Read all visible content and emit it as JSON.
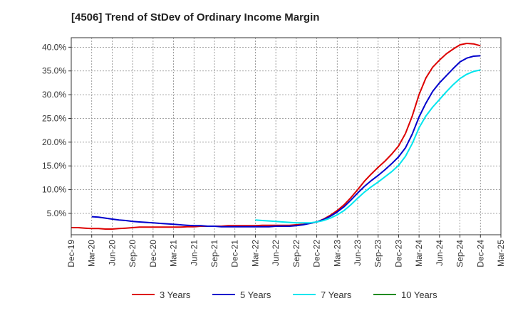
{
  "chart_data": {
    "type": "line",
    "title": "[4506]  Trend of StDev of Ordinary Income Margin",
    "xlabel": "",
    "ylabel": "",
    "x_ticks": [
      "Dec-19",
      "Mar-20",
      "Jun-20",
      "Sep-20",
      "Dec-20",
      "Mar-21",
      "Jun-21",
      "Sep-21",
      "Dec-21",
      "Mar-22",
      "Jun-22",
      "Sep-22",
      "Dec-22",
      "Mar-23",
      "Jun-23",
      "Sep-23",
      "Dec-23",
      "Mar-24",
      "Jun-24",
      "Sep-24",
      "Dec-24",
      "Mar-25"
    ],
    "y_ticks": [
      "5.0%",
      "10.0%",
      "15.0%",
      "20.0%",
      "25.0%",
      "30.0%",
      "35.0%",
      "40.0%"
    ],
    "ylim": [
      0.5,
      42.0
    ],
    "grid": true,
    "legend_position": "bottom",
    "series": [
      {
        "name": "3 Years",
        "color": "#dd0000",
        "x": [
          "Dec-19",
          "Jan-20",
          "Feb-20",
          "Mar-20",
          "Apr-20",
          "May-20",
          "Jun-20",
          "Jul-20",
          "Aug-20",
          "Sep-20",
          "Oct-20",
          "Nov-20",
          "Dec-20",
          "Jan-21",
          "Feb-21",
          "Mar-21",
          "Apr-21",
          "May-21",
          "Jun-21",
          "Jul-21",
          "Aug-21",
          "Sep-21",
          "Oct-21",
          "Nov-21",
          "Dec-21",
          "Jan-22",
          "Feb-22",
          "Mar-22",
          "Apr-22",
          "May-22",
          "Jun-22",
          "Jul-22",
          "Aug-22",
          "Sep-22",
          "Oct-22",
          "Nov-22",
          "Dec-22",
          "Jan-23",
          "Feb-23",
          "Mar-23",
          "Apr-23",
          "May-23",
          "Jun-23",
          "Jul-23",
          "Aug-23",
          "Sep-23",
          "Oct-23",
          "Nov-23",
          "Dec-23",
          "Jan-24",
          "Feb-24",
          "Mar-24",
          "Apr-24",
          "May-24",
          "Jun-24",
          "Jul-24",
          "Aug-24",
          "Sep-24",
          "Oct-24",
          "Nov-24",
          "Dec-24"
        ],
        "values": [
          2.0,
          2.0,
          1.9,
          1.8,
          1.8,
          1.7,
          1.7,
          1.8,
          1.9,
          2.0,
          2.1,
          2.1,
          2.1,
          2.1,
          2.1,
          2.1,
          2.1,
          2.2,
          2.2,
          2.3,
          2.3,
          2.3,
          2.3,
          2.4,
          2.4,
          2.4,
          2.4,
          2.4,
          2.5,
          2.5,
          2.5,
          2.5,
          2.5,
          2.6,
          2.7,
          2.9,
          3.2,
          3.8,
          4.6,
          5.6,
          6.8,
          8.3,
          10.0,
          11.8,
          13.3,
          14.7,
          16.0,
          17.5,
          19.2,
          21.8,
          25.5,
          30.0,
          33.5,
          35.8,
          37.3,
          38.6,
          39.6,
          40.5,
          40.8,
          40.7,
          40.3
        ]
      },
      {
        "name": "5 Years",
        "color": "#0000cc",
        "x": [
          "Mar-20",
          "Apr-20",
          "May-20",
          "Jun-20",
          "Jul-20",
          "Aug-20",
          "Sep-20",
          "Oct-20",
          "Nov-20",
          "Dec-20",
          "Jan-21",
          "Feb-21",
          "Mar-21",
          "Apr-21",
          "May-21",
          "Jun-21",
          "Jul-21",
          "Aug-21",
          "Sep-21",
          "Oct-21",
          "Nov-21",
          "Dec-21",
          "Jan-22",
          "Feb-22",
          "Mar-22",
          "Apr-22",
          "May-22",
          "Jun-22",
          "Jul-22",
          "Aug-22",
          "Sep-22",
          "Oct-22",
          "Nov-22",
          "Dec-22",
          "Jan-23",
          "Feb-23",
          "Mar-23",
          "Apr-23",
          "May-23",
          "Jun-23",
          "Jul-23",
          "Aug-23",
          "Sep-23",
          "Oct-23",
          "Nov-23",
          "Dec-23",
          "Jan-24",
          "Feb-24",
          "Mar-24",
          "Apr-24",
          "May-24",
          "Jun-24",
          "Jul-24",
          "Aug-24",
          "Sep-24",
          "Oct-24",
          "Nov-24",
          "Dec-24"
        ],
        "values": [
          4.3,
          4.2,
          4.0,
          3.8,
          3.6,
          3.5,
          3.3,
          3.2,
          3.1,
          3.0,
          2.9,
          2.8,
          2.7,
          2.6,
          2.5,
          2.4,
          2.4,
          2.3,
          2.3,
          2.2,
          2.2,
          2.2,
          2.2,
          2.2,
          2.2,
          2.2,
          2.2,
          2.3,
          2.3,
          2.3,
          2.4,
          2.6,
          2.9,
          3.2,
          3.7,
          4.4,
          5.3,
          6.4,
          7.8,
          9.3,
          10.7,
          11.9,
          13.0,
          14.2,
          15.5,
          16.9,
          18.8,
          21.7,
          25.3,
          28.2,
          30.7,
          32.5,
          34.0,
          35.5,
          36.9,
          37.7,
          38.1,
          38.2
        ]
      },
      {
        "name": "7 Years",
        "color": "#00e5ee",
        "x": [
          "Mar-22",
          "Apr-22",
          "May-22",
          "Jun-22",
          "Jul-22",
          "Aug-22",
          "Sep-22",
          "Oct-22",
          "Nov-22",
          "Dec-22",
          "Jan-23",
          "Feb-23",
          "Mar-23",
          "Apr-23",
          "May-23",
          "Jun-23",
          "Jul-23",
          "Aug-23",
          "Sep-23",
          "Oct-23",
          "Nov-23",
          "Dec-23",
          "Jan-24",
          "Feb-24",
          "Mar-24",
          "Apr-24",
          "May-24",
          "Jun-24",
          "Jul-24",
          "Aug-24",
          "Sep-24",
          "Oct-24",
          "Nov-24",
          "Dec-24"
        ],
        "values": [
          3.6,
          3.5,
          3.4,
          3.3,
          3.2,
          3.1,
          3.0,
          3.0,
          3.0,
          3.2,
          3.5,
          4.0,
          4.7,
          5.6,
          6.8,
          8.2,
          9.5,
          10.6,
          11.6,
          12.7,
          13.8,
          15.1,
          17.0,
          19.7,
          23.0,
          25.5,
          27.4,
          29.0,
          30.6,
          32.1,
          33.4,
          34.3,
          34.9,
          35.2
        ]
      },
      {
        "name": "10 Years",
        "color": "#228b22",
        "x": [],
        "values": []
      }
    ]
  }
}
